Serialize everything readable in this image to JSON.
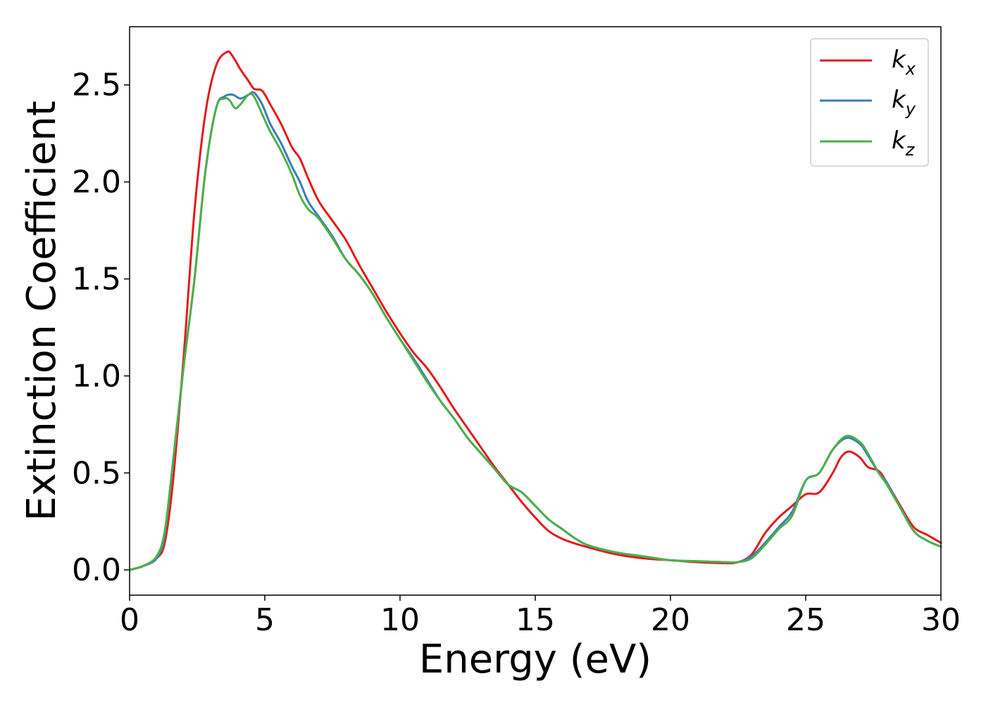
{
  "chart_data": {
    "type": "line",
    "title": "",
    "xlabel": "Energy (eV)",
    "ylabel": "Extinction Coefficient",
    "xlim": [
      0,
      30
    ],
    "ylim": [
      -0.13,
      2.8
    ],
    "xticks": [
      0,
      5,
      10,
      15,
      20,
      25,
      30
    ],
    "xtick_labels": [
      "0",
      "5",
      "10",
      "15",
      "20",
      "25",
      "30"
    ],
    "yticks": [
      0.0,
      0.5,
      1.0,
      1.5,
      2.0,
      2.5
    ],
    "ytick_labels": [
      "0.0",
      "0.5",
      "1.0",
      "1.5",
      "2.0",
      "2.5"
    ],
    "grid": false,
    "legend_position": "top-right",
    "series": [
      {
        "name": "k_x",
        "legend_base": "k",
        "legend_sub": "x",
        "color": "#e41a1c",
        "x": [
          0,
          0.5,
          1.0,
          1.3,
          1.6,
          2.0,
          2.4,
          2.8,
          3.2,
          3.6,
          3.8,
          4.1,
          4.4,
          4.6,
          4.9,
          5.2,
          5.6,
          6.0,
          6.3,
          6.6,
          7.0,
          7.5,
          8.0,
          8.5,
          9.0,
          9.5,
          10.0,
          10.5,
          11.0,
          11.5,
          12.0,
          12.5,
          13.0,
          13.5,
          14.0,
          14.5,
          15.0,
          15.5,
          16.0,
          16.5,
          17.0,
          18.0,
          19.0,
          20.0,
          21.0,
          22.0,
          22.5,
          23.0,
          23.5,
          24.0,
          24.5,
          25.0,
          25.5,
          26.0,
          26.3,
          26.6,
          27.0,
          27.3,
          27.7,
          28.0,
          28.5,
          29.0,
          29.5,
          30.0
        ],
        "y": [
          0.0,
          0.02,
          0.06,
          0.14,
          0.45,
          1.1,
          1.85,
          2.35,
          2.6,
          2.67,
          2.65,
          2.58,
          2.52,
          2.48,
          2.47,
          2.4,
          2.3,
          2.18,
          2.12,
          2.02,
          1.9,
          1.8,
          1.7,
          1.57,
          1.45,
          1.33,
          1.22,
          1.12,
          1.04,
          0.94,
          0.83,
          0.73,
          0.63,
          0.53,
          0.44,
          0.35,
          0.27,
          0.2,
          0.16,
          0.135,
          0.115,
          0.08,
          0.06,
          0.05,
          0.04,
          0.035,
          0.04,
          0.08,
          0.19,
          0.27,
          0.33,
          0.39,
          0.4,
          0.5,
          0.58,
          0.61,
          0.58,
          0.53,
          0.51,
          0.45,
          0.33,
          0.22,
          0.18,
          0.14
        ]
      },
      {
        "name": "k_y",
        "legend_base": "k",
        "legend_sub": "y",
        "color": "#377eb8",
        "x": [
          0,
          0.5,
          1.0,
          1.3,
          1.6,
          2.0,
          2.4,
          2.8,
          3.2,
          3.5,
          3.8,
          4.1,
          4.4,
          4.6,
          4.9,
          5.2,
          5.6,
          6.0,
          6.3,
          6.6,
          7.0,
          7.5,
          8.0,
          8.5,
          9.0,
          9.5,
          10.0,
          10.5,
          11.0,
          11.5,
          12.0,
          12.5,
          13.0,
          13.5,
          14.0,
          14.5,
          15.0,
          15.5,
          16.0,
          16.5,
          17.0,
          18.0,
          19.0,
          20.0,
          21.0,
          22.0,
          22.5,
          23.0,
          23.5,
          24.0,
          24.5,
          25.0,
          25.5,
          26.0,
          26.5,
          27.0,
          27.3,
          27.7,
          28.0,
          28.5,
          29.0,
          29.5,
          30.0
        ],
        "y": [
          0.0,
          0.02,
          0.06,
          0.18,
          0.55,
          1.05,
          1.5,
          2.05,
          2.38,
          2.44,
          2.45,
          2.43,
          2.45,
          2.46,
          2.4,
          2.3,
          2.2,
          2.08,
          2.0,
          1.9,
          1.82,
          1.72,
          1.6,
          1.52,
          1.42,
          1.3,
          1.19,
          1.09,
          0.98,
          0.87,
          0.78,
          0.68,
          0.6,
          0.52,
          0.44,
          0.4,
          0.33,
          0.26,
          0.21,
          0.16,
          0.125,
          0.09,
          0.07,
          0.05,
          0.045,
          0.04,
          0.04,
          0.07,
          0.14,
          0.22,
          0.3,
          0.46,
          0.5,
          0.62,
          0.68,
          0.65,
          0.59,
          0.5,
          0.45,
          0.32,
          0.2,
          0.15,
          0.12
        ]
      },
      {
        "name": "k_z",
        "legend_base": "k",
        "legend_sub": "z",
        "color": "#4daf4a",
        "x": [
          0,
          0.5,
          1.0,
          1.3,
          1.6,
          2.0,
          2.4,
          2.8,
          3.2,
          3.5,
          3.7,
          3.9,
          4.1,
          4.4,
          4.6,
          4.9,
          5.2,
          5.6,
          6.0,
          6.3,
          6.6,
          7.0,
          7.5,
          8.0,
          8.5,
          9.0,
          9.5,
          10.0,
          10.5,
          11.0,
          11.5,
          12.0,
          12.5,
          13.0,
          13.5,
          14.0,
          14.5,
          15.0,
          15.5,
          16.0,
          16.5,
          17.0,
          18.0,
          19.0,
          20.0,
          21.0,
          22.0,
          22.5,
          23.0,
          23.5,
          24.0,
          24.5,
          25.0,
          25.5,
          26.0,
          26.5,
          27.0,
          27.3,
          27.7,
          28.0,
          28.5,
          29.0,
          29.5,
          30.0
        ],
        "y": [
          0.0,
          0.02,
          0.07,
          0.2,
          0.55,
          1.05,
          1.5,
          2.05,
          2.38,
          2.43,
          2.42,
          2.38,
          2.4,
          2.45,
          2.44,
          2.35,
          2.26,
          2.16,
          2.04,
          1.93,
          1.86,
          1.81,
          1.71,
          1.6,
          1.52,
          1.42,
          1.3,
          1.19,
          1.08,
          0.97,
          0.87,
          0.78,
          0.68,
          0.6,
          0.52,
          0.44,
          0.4,
          0.33,
          0.26,
          0.21,
          0.16,
          0.125,
          0.09,
          0.07,
          0.05,
          0.045,
          0.04,
          0.04,
          0.06,
          0.13,
          0.21,
          0.28,
          0.46,
          0.5,
          0.62,
          0.69,
          0.66,
          0.6,
          0.5,
          0.44,
          0.32,
          0.2,
          0.15,
          0.12
        ]
      }
    ]
  }
}
